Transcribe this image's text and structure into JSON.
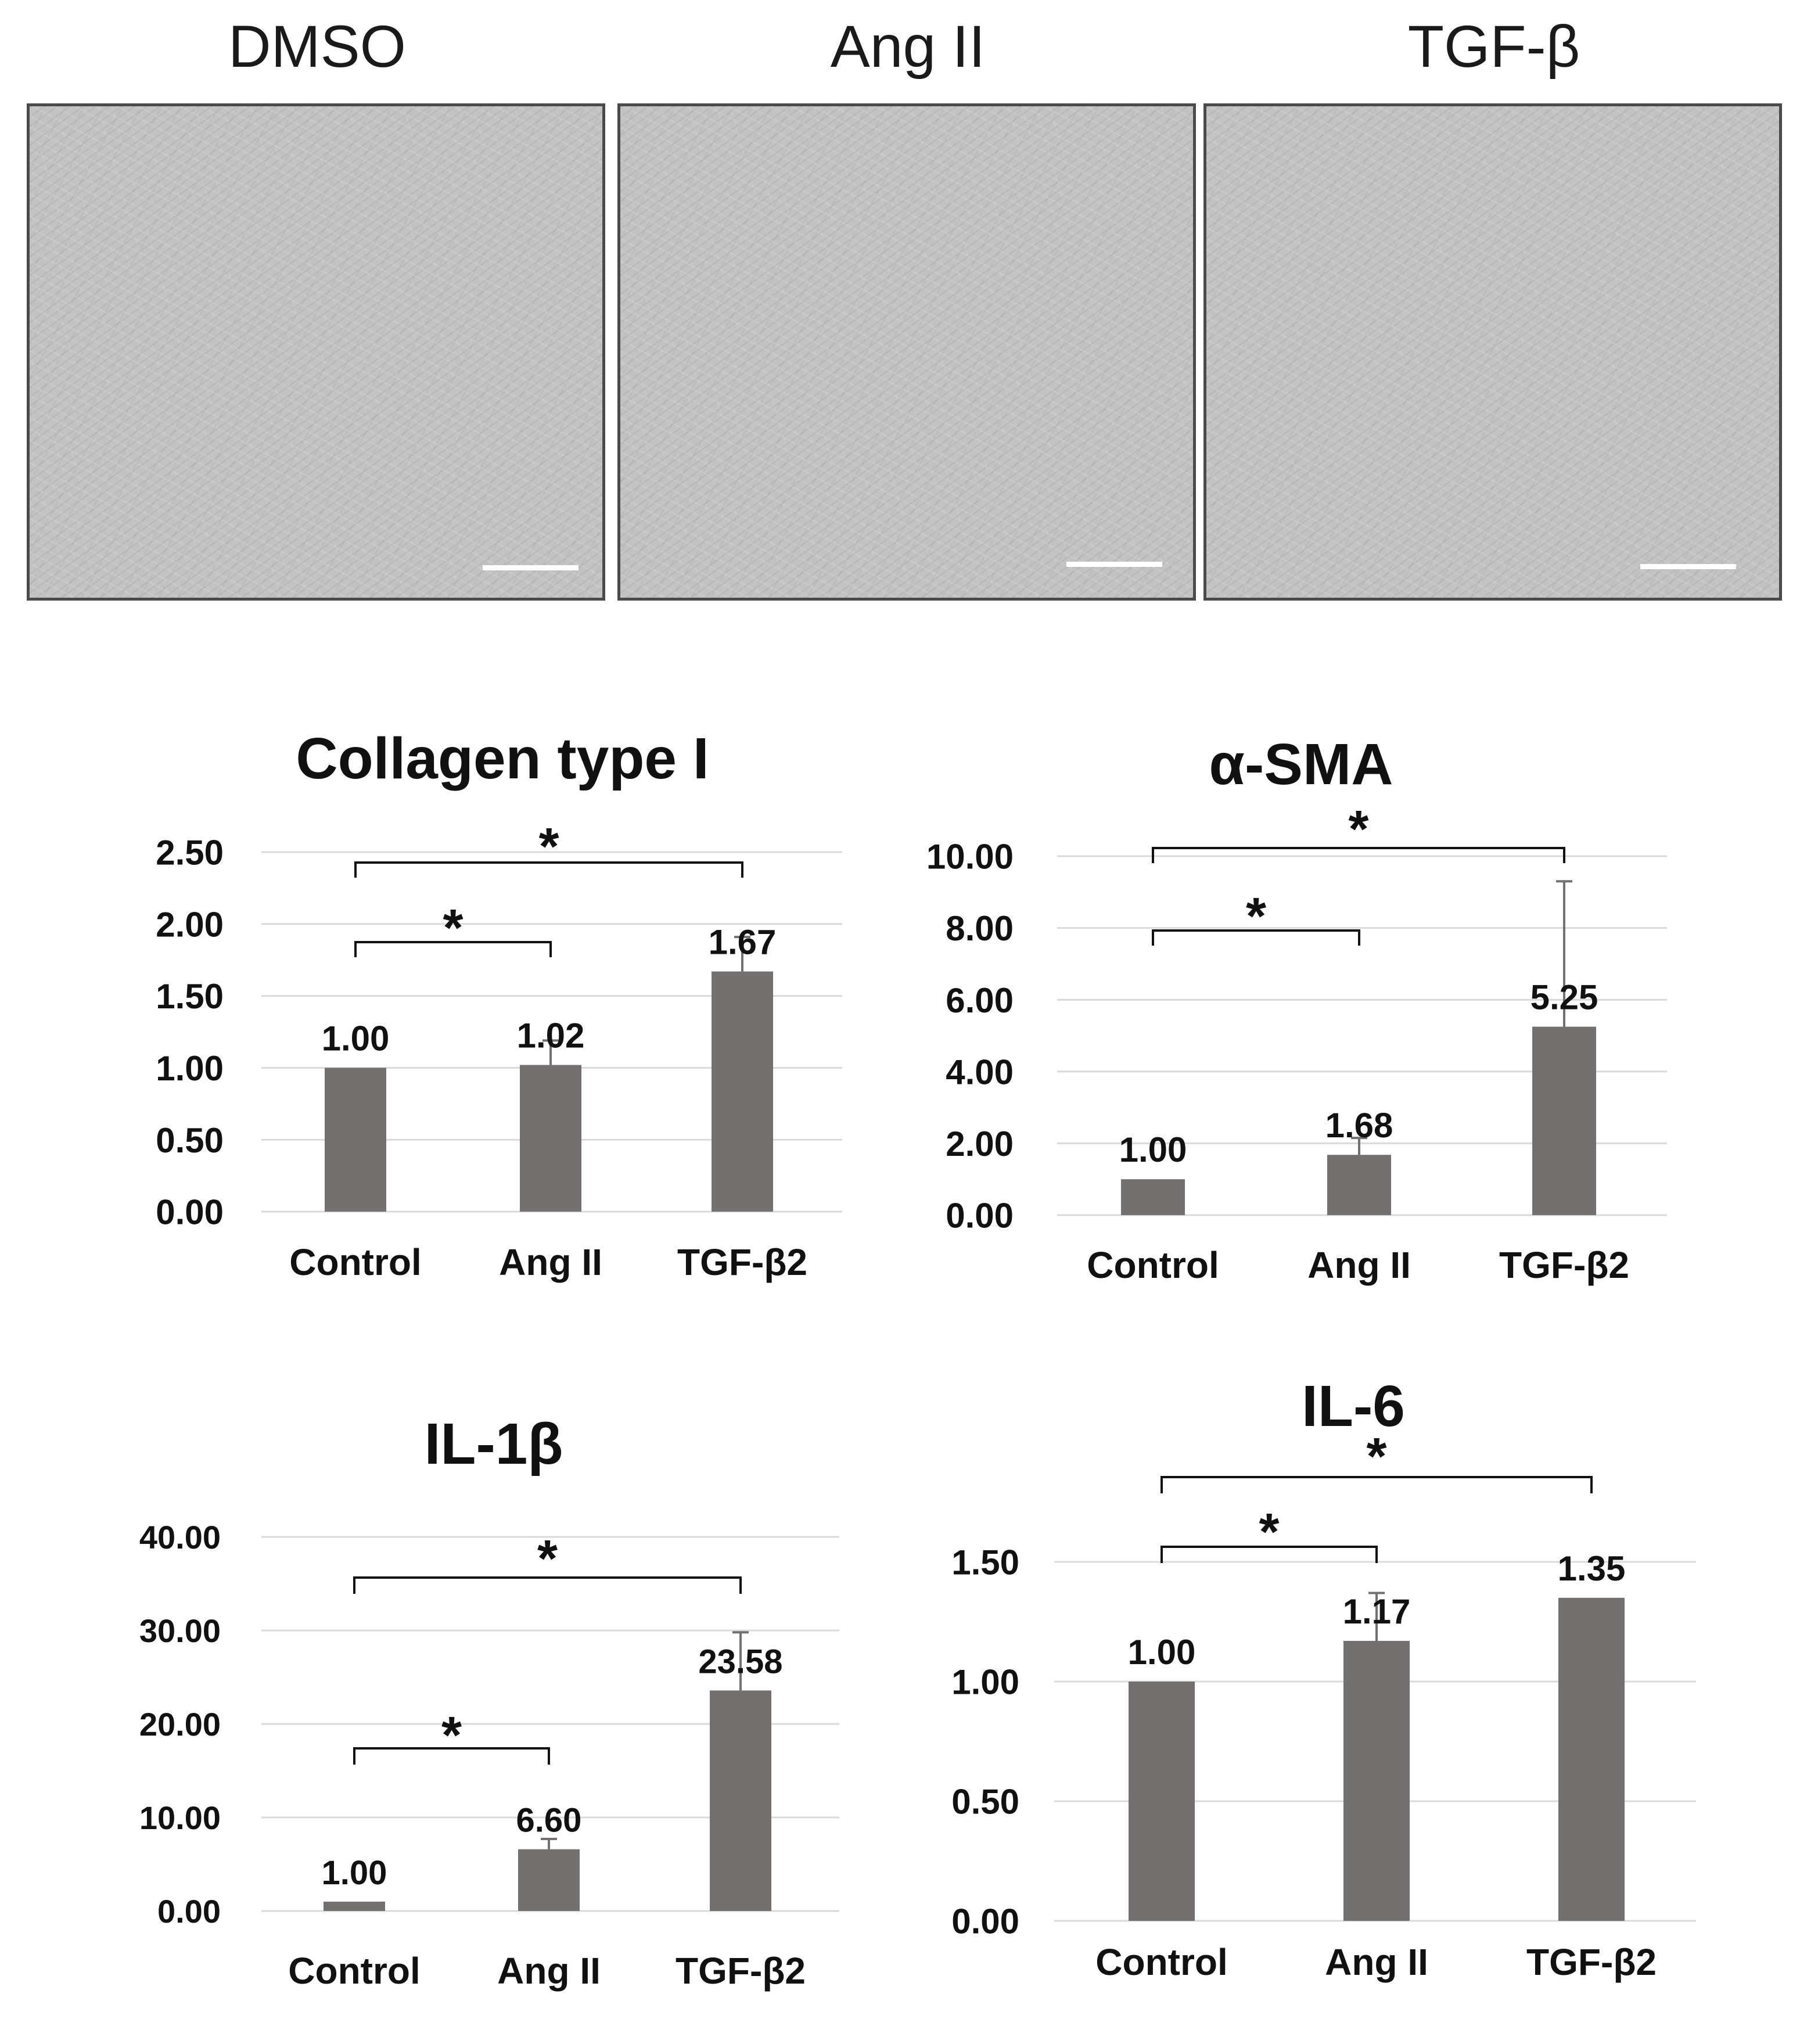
{
  "micrographs": [
    {
      "label": "DMSO"
    },
    {
      "label": "Ang II"
    },
    {
      "label": "TGF-β"
    }
  ],
  "colors": {
    "bar": "#757070",
    "grid": "#d9d9d9",
    "text": "#111111",
    "bracket": "#111111"
  },
  "chart_data": [
    {
      "type": "bar",
      "title": "Collagen type I",
      "categories": [
        "Control",
        "Ang II",
        "TGF-β2"
      ],
      "values": [
        1.0,
        1.02,
        1.67
      ],
      "value_labels": [
        "1.00",
        "1.02",
        "1.67"
      ],
      "error_upper": [
        1.0,
        1.19,
        1.91
      ],
      "ylim": [
        0,
        2.5
      ],
      "yticks": [
        "0.00",
        "0.50",
        "1.00",
        "1.50",
        "2.00",
        "2.50"
      ],
      "grid": true,
      "significance": [
        {
          "from": 0,
          "to": 1,
          "label": "*"
        },
        {
          "from": 0,
          "to": 2,
          "label": "*"
        }
      ]
    },
    {
      "type": "bar",
      "title": "α-SMA",
      "categories": [
        "Control",
        "Ang II",
        "TGF-β2"
      ],
      "values": [
        1.0,
        1.68,
        5.25
      ],
      "value_labels": [
        "1.00",
        "1.68",
        "5.25"
      ],
      "error_upper": [
        1.0,
        2.15,
        9.3
      ],
      "ylim": [
        0,
        10
      ],
      "yticks": [
        "0.00",
        "2.00",
        "4.00",
        "6.00",
        "8.00",
        "10.00"
      ],
      "grid": true,
      "significance": [
        {
          "from": 0,
          "to": 1,
          "label": "*"
        },
        {
          "from": 0,
          "to": 2,
          "label": "*"
        }
      ]
    },
    {
      "type": "bar",
      "title": "IL-1β",
      "categories": [
        "Control",
        "Ang II",
        "TGF-β2"
      ],
      "values": [
        1.0,
        6.6,
        23.58
      ],
      "value_labels": [
        "1.00",
        "6.60",
        "23.58"
      ],
      "error_upper": [
        1.0,
        7.7,
        29.8
      ],
      "ylim": [
        0,
        40
      ],
      "yticks": [
        "0.00",
        "10.00",
        "20.00",
        "30.00",
        "40.00"
      ],
      "grid": true,
      "significance": [
        {
          "from": 0,
          "to": 1,
          "label": "*"
        },
        {
          "from": 0,
          "to": 2,
          "label": "*"
        }
      ]
    },
    {
      "type": "bar",
      "title": "IL-6",
      "categories": [
        "Control",
        "Ang II",
        "TGF-β2"
      ],
      "values": [
        1.0,
        1.17,
        1.35
      ],
      "value_labels": [
        "1.00",
        "1.17",
        "1.35"
      ],
      "error_upper": [
        1.0,
        1.37,
        1.35
      ],
      "ylim": [
        0,
        1.5
      ],
      "yticks": [
        "0.00",
        "0.50",
        "1.00",
        "1.50"
      ],
      "grid": true,
      "significance": [
        {
          "from": 0,
          "to": 1,
          "label": "*"
        },
        {
          "from": 0,
          "to": 2,
          "label": "*"
        }
      ]
    }
  ]
}
